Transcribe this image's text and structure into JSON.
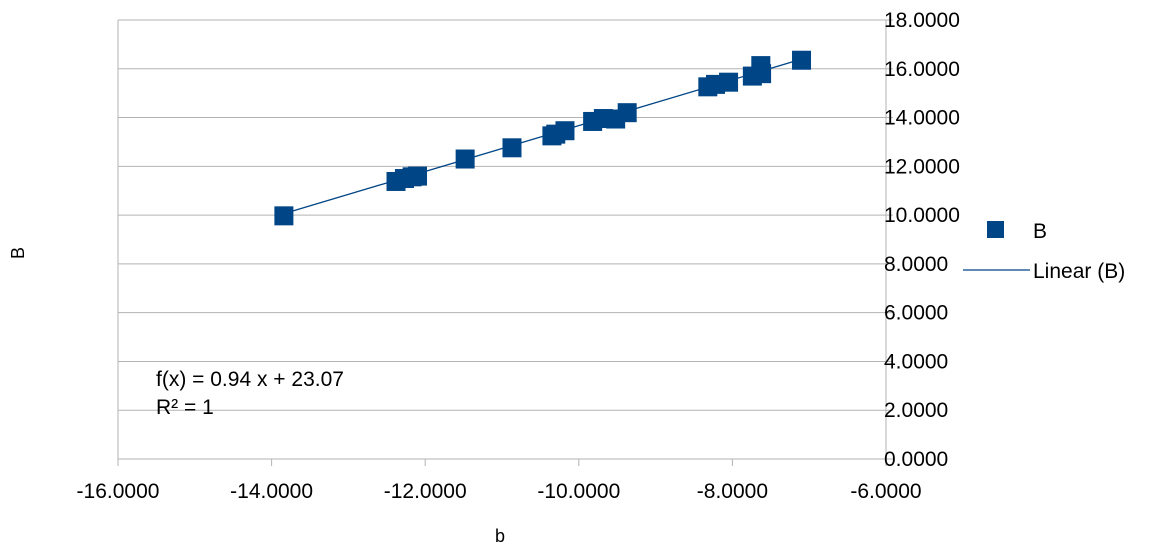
{
  "chart_data": {
    "type": "scatter",
    "title": "",
    "xlabel": "b",
    "ylabel": "B",
    "xlim": [
      -16,
      -6
    ],
    "ylim": [
      0,
      18
    ],
    "x_ticks": [
      -16,
      -14,
      -12,
      -10,
      -8,
      -6
    ],
    "y_ticks": [
      0,
      2,
      4,
      6,
      8,
      10,
      12,
      14,
      16,
      18
    ],
    "x_tick_labels": [
      "-16.0000",
      "-14.0000",
      "-12.0000",
      "-10.0000",
      "-8.0000",
      "-6.0000"
    ],
    "y_tick_labels": [
      "0.0000",
      "2.0000",
      "4.0000",
      "6.0000",
      "8.0000",
      "10.0000",
      "12.0000",
      "14.0000",
      "16.0000",
      "18.0000"
    ],
    "grid": "horizontal",
    "legend_position": "right",
    "series": [
      {
        "name": "B",
        "marker": "square",
        "color": "#004586",
        "points": [
          [
            -13.84,
            9.97
          ],
          [
            -12.38,
            11.38
          ],
          [
            -12.27,
            11.5
          ],
          [
            -12.17,
            11.57
          ],
          [
            -12.1,
            11.6
          ],
          [
            -11.48,
            12.3
          ],
          [
            -10.87,
            12.76
          ],
          [
            -10.35,
            13.25
          ],
          [
            -10.3,
            13.32
          ],
          [
            -10.18,
            13.46
          ],
          [
            -9.82,
            13.84
          ],
          [
            -9.68,
            13.96
          ],
          [
            -9.52,
            13.94
          ],
          [
            -9.37,
            14.2
          ],
          [
            -8.32,
            15.26
          ],
          [
            -8.22,
            15.36
          ],
          [
            -8.05,
            15.45
          ],
          [
            -7.74,
            15.7
          ],
          [
            -7.62,
            15.8
          ],
          [
            -7.63,
            16.13
          ],
          [
            -7.1,
            16.35
          ]
        ]
      }
    ],
    "trendline": {
      "name": "Linear (B)",
      "type": "linear",
      "slope": 0.94,
      "intercept": 23.07,
      "x_range": [
        -13.84,
        -7.1
      ],
      "color": "#004586",
      "equation_label": "f(x) = 0.94 x + 23.07",
      "r2_label": "R² = 1"
    }
  }
}
